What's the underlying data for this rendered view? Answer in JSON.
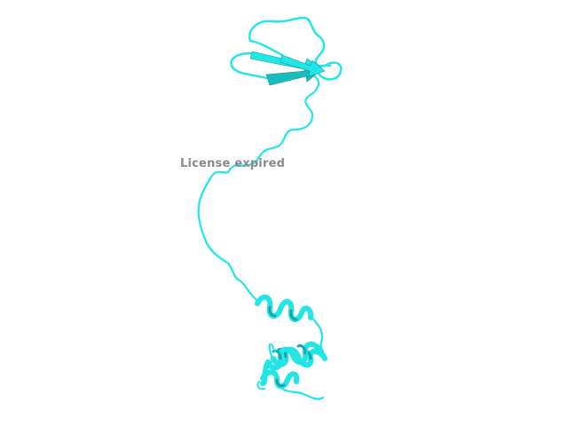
{
  "viewer": {
    "watermark_text": "License expired"
  },
  "molecule": {
    "representation": "cartoon",
    "color": "#22e6e6",
    "shade_color": "#14a9a9",
    "domains": [
      "beta-sheet",
      "linker-coil",
      "alpha-helix-bundle"
    ]
  }
}
